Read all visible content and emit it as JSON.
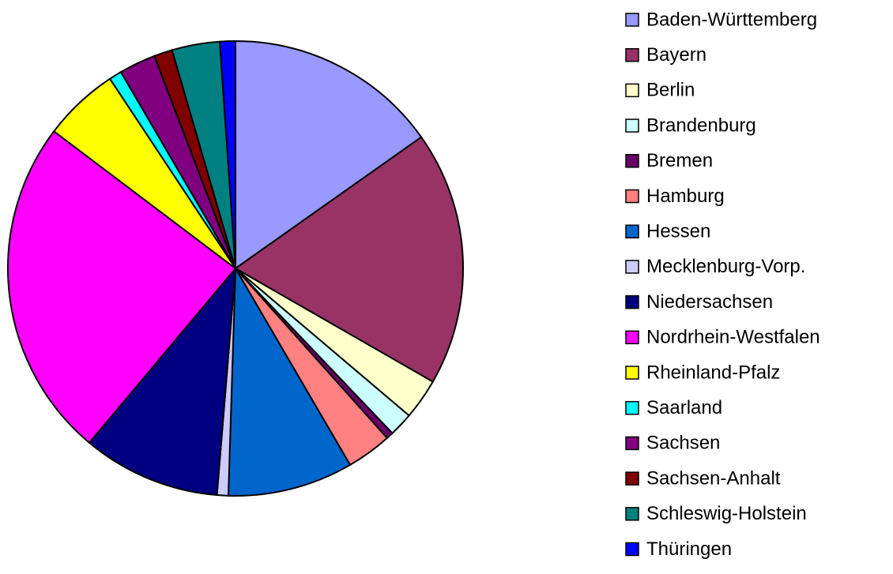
{
  "chart_data": {
    "type": "pie",
    "categories": [
      "Baden-Württemberg",
      "Bayern",
      "Berlin",
      "Brandenburg",
      "Bremen",
      "Hamburg",
      "Hessen",
      "Mecklenburg-Vorp.",
      "Niedersachsen",
      "Nordrhein-Westfalen",
      "Rheinland-Pfalz",
      "Saarland",
      "Sachsen",
      "Sachsen-Anhalt",
      "Schleswig-Holstein",
      "Thüringen"
    ],
    "values": [
      15.2,
      18.1,
      2.9,
      1.7,
      0.5,
      3.2,
      8.9,
      0.8,
      9.8,
      24.2,
      5.4,
      0.9,
      2.6,
      1.3,
      3.4,
      1.1
    ],
    "colors": [
      "#9999FF",
      "#993366",
      "#FFFFCC",
      "#CCFFFF",
      "#660066",
      "#FF8080",
      "#0066CC",
      "#CCCCFF",
      "#000080",
      "#FF00FF",
      "#FFFF00",
      "#00FFFF",
      "#800080",
      "#800000",
      "#008080",
      "#0000FF"
    ],
    "legend": "right"
  }
}
